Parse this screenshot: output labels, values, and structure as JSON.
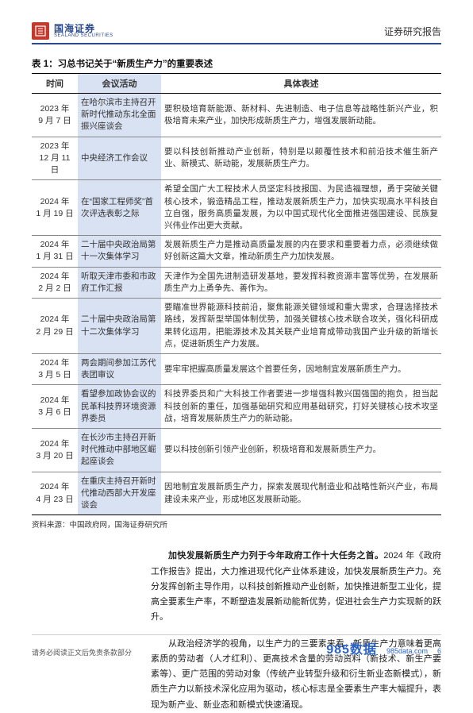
{
  "header": {
    "logo_cn": "国海证券",
    "logo_en": "SEALAND SECURITIES",
    "right": "证券研究报告"
  },
  "table": {
    "title": "表 1：习总书记关于“新质生产力”的重要表述",
    "columns": {
      "date": "时间",
      "event": "会议活动",
      "desc": "具体表述"
    },
    "rows": [
      {
        "date": "2023 年\n9 月 7 日",
        "event": "在哈尔滨市主持召开新时代推动东北全面振兴座谈会",
        "desc": "要积极培育新能源、新材料、先进制造、电子信息等战略性新兴产业，积极培育未来产业，加快形成新质生产力，增强发展新动能。"
      },
      {
        "date": "2023 年\n12 月 11 日",
        "event": "中央经济工作会议",
        "desc": "要以科技创新推动产业创新，特别是以颠覆性技术和前沿技术催生新产业、新模式、新动能，发展新质生产力。"
      },
      {
        "date": "2024 年\n1 月 19 日",
        "event": "在“国家工程师奖”首次评选表彰之际",
        "desc": "希望全国广大工程技术人员坚定科技报国、为民造福理想，勇于突破关键核心技术，锻造精品工程，推动发展新质生产力，加快实现高水平科技自立自强，服务高质量发展，为以中国式现代化全面推进强国建设、民族复兴伟业作出更大贡献。"
      },
      {
        "date": "2024 年\n1 月 31 日",
        "event": "二十届中央政治局第十一次集体学习",
        "desc": "发展新质生产力是推动高质量发展的内在要求和重要着力点，必须继续做好创新这篇大文章，推动新质生产力加快发展。"
      },
      {
        "date": "2024 年\n2 月 2 日",
        "event": "听取天津市委和市政府工作汇报",
        "desc": "天津作为全国先进制造研发基地，要发挥科教资源丰富等优势，在发展新质生产力上勇争先、善作为。"
      },
      {
        "date": "2024 年\n2 月 29 日",
        "event": "二十届中央政治局第十二次集体学习",
        "desc": "要瞄准世界能源科技前沿，聚焦能源关键领域和重大需求，合理选择技术路线，发挥新型举国体制优势，加强关键核心技术联合攻关，强化科研成果转化运用，把能源技术及其关联产业培育成带动我国产业升级的新增长点，促进新质生产力发展。"
      },
      {
        "date": "2024 年\n3 月 5 日",
        "event": "两会期间参加江苏代表团审议",
        "desc": "要牢牢把握高质量发展这个首要任务，因地制宜发展新质生产力。"
      },
      {
        "date": "2024 年\n3 月 6 日",
        "event": "看望参加政协会议的民革科技界环境资源界委员",
        "desc": "科技界委员和广大科技工作者要进一步增强科教兴国强国的抱负，担当起科技创新的重任，加强基础研究和应用基础研究，打好关键核心技术攻坚战，培育发展新质生产力的新动能。"
      },
      {
        "date": "2024 年\n3 月 20 日",
        "event": "在长沙市主持召开新时代推动中部地区崛起座谈会",
        "desc": "要以科技创新引领产业创新，积极培育和发展新质生产力。"
      },
      {
        "date": "2024 年\n4 月 23 日",
        "event": "在重庆主持召开新时代推动西部大开发座谈会",
        "desc": "因地制宜发展新质生产力，探索发展现代制造业和战略性新兴产业，布局建设未来产业，形成地区发展新动能。"
      }
    ],
    "source": "资料来源：中国政府网，国海证券研究所"
  },
  "body": {
    "p1_bold": "加快发展新质生产力列于今年政府工作十大任务之首。",
    "p1_rest": "2024 年《政府工作报告》提出，大力推进现代化产业体系建设，加快发展新质生产力。充分发挥创新主导作用，以科技创新推动产业创新，加快推进新型工业化，提高全要素生产率，不断塑造发展新动能新优势，促进社会生产力实现新的跃升。",
    "p2": "从政治经济学的视角，以生产力的三要素来看，新质生产力意味着更高素质的劳动者（人才红利）、更高技术含量的劳动资料（新技术、新生产要素等）、更广范围的劳动对象（传统产业转型升级和衍生新业态新模式），新质生产力以新技术深化应用为驱动，核心标志是全要素生产率大幅提升，表现为新产业、新业态和新模式快速涌现。"
  },
  "footer": {
    "left": "请务必阅读正文后免责条款部分",
    "wm_main": "985数据",
    "wm_sub": "985data.com",
    "page": "6"
  },
  "colors": {
    "brand_blue": "#2a4a8a",
    "header_cell_bg": "#d9e2f3",
    "logo_red": "#c23a2e",
    "wm_blue": "#2a62c9"
  }
}
